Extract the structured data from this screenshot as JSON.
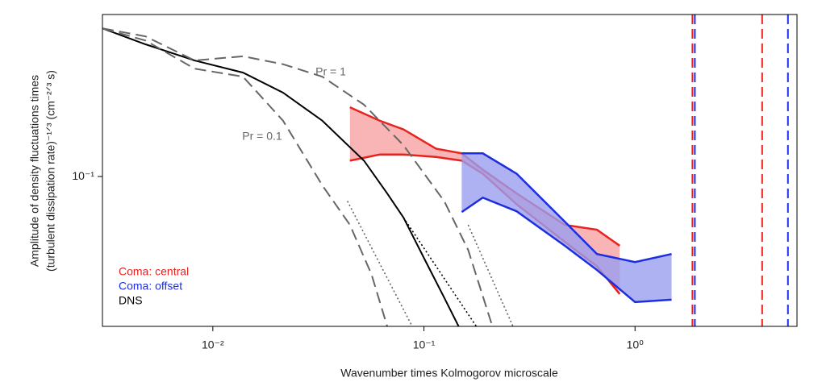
{
  "chart_data": {
    "type": "line",
    "xlabel": "Wavenumber times Kolmogorov microscale",
    "ylabel": [
      "Amplitude of density fluctuations times",
      "(turbulent dissipation rate)⁻¹ᐟ³ (cm⁻²ᐟ³ s)"
    ],
    "xscale": "log",
    "yscale": "log",
    "xlim": [
      0.003,
      5.85
    ],
    "ylim": [
      0.0343,
      0.318
    ],
    "xticks": [
      {
        "value": 0.01,
        "label": "10⁻²"
      },
      {
        "value": 0.1,
        "label": "10⁻¹"
      },
      {
        "value": 1,
        "label": "10⁰"
      }
    ],
    "yticks": [
      {
        "value": 0.1,
        "label": "10⁻¹"
      }
    ],
    "legend": "lower left",
    "series": [
      {
        "name": "Coma: central",
        "color": "#e8221f",
        "fill": "#f7a3a3",
        "style": "band",
        "x": [
          0.0446,
          0.0617,
          0.08,
          0.114,
          0.151,
          0.19,
          0.275,
          0.465,
          0.66,
          0.846
        ],
        "values": [
          0.164,
          0.149,
          0.14,
          0.122,
          0.118,
          0.105,
          0.0886,
          0.0708,
          0.0684,
          0.061
        ],
        "lower": [
          0.112,
          0.117,
          0.117,
          0.115,
          0.112,
          0.102,
          0.082,
          0.0627,
          0.0527,
          0.0432
        ]
      },
      {
        "name": "Coma: offset",
        "color": "#1d2ee0",
        "fill": "#9a9ff0",
        "style": "band",
        "x": [
          0.151,
          0.19,
          0.275,
          0.465,
          0.66,
          1.0,
          1.49
        ],
        "values": [
          0.118,
          0.118,
          0.102,
          0.0724,
          0.0575,
          0.0543,
          0.0575
        ],
        "lower": [
          0.0776,
          0.086,
          0.078,
          0.061,
          0.0513,
          0.0408,
          0.0415
        ]
      },
      {
        "name": "DNS",
        "color": "#000000",
        "style": "solid",
        "x": [
          0.003,
          0.0048,
          0.0082,
          0.0139,
          0.0215,
          0.033,
          0.052,
          0.067,
          0.08,
          0.1,
          0.125,
          0.146
        ],
        "values": [
          0.288,
          0.257,
          0.229,
          0.21,
          0.182,
          0.149,
          0.112,
          0.0886,
          0.0746,
          0.0559,
          0.042,
          0.0343
        ]
      },
      {
        "label": "Pr = 1",
        "color": "#666666",
        "style": "dashed",
        "x": [
          0.003,
          0.0048,
          0.0082,
          0.0139,
          0.0215,
          0.033,
          0.052,
          0.08,
          0.125,
          0.162,
          0.211
        ],
        "values": [
          0.288,
          0.272,
          0.229,
          0.236,
          0.223,
          0.204,
          0.167,
          0.125,
          0.0837,
          0.0592,
          0.0343
        ]
      },
      {
        "label": "Pr = 0.1",
        "color": "#666666",
        "style": "dashed",
        "x": [
          0.003,
          0.0048,
          0.0082,
          0.0139,
          0.0215,
          0.033,
          0.0446,
          0.0564,
          0.067
        ],
        "values": [
          0.288,
          0.264,
          0.216,
          0.204,
          0.149,
          0.0939,
          0.0708,
          0.0498,
          0.0343
        ]
      },
      {
        "color": "#000000",
        "style": "dotted",
        "x": [
          0.08,
          0.177
        ],
        "values": [
          0.0746,
          0.0343
        ]
      },
      {
        "color": "#666666",
        "style": "dotted",
        "x": [
          0.162,
          0.264
        ],
        "values": [
          0.0708,
          0.0343
        ]
      },
      {
        "color": "#666666",
        "style": "dotted",
        "x": [
          0.0434,
          0.088
        ],
        "values": [
          0.0839,
          0.0343
        ]
      }
    ],
    "vlines": [
      {
        "x": 1.87,
        "color": "#e8221f"
      },
      {
        "x": 1.92,
        "color": "#1d2ee0"
      },
      {
        "x": 4.0,
        "color": "#e8221f"
      },
      {
        "x": 5.3,
        "color": "#1d2ee0"
      }
    ]
  }
}
